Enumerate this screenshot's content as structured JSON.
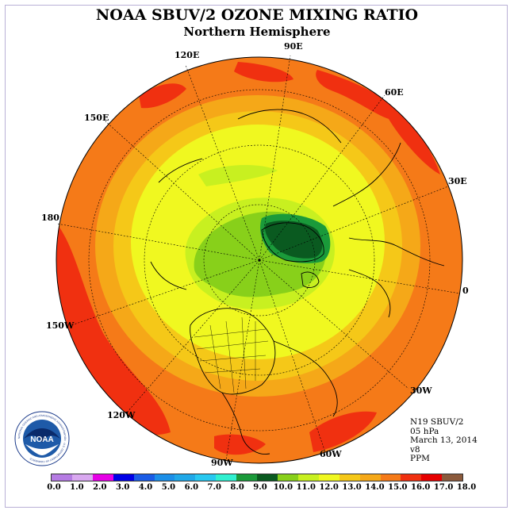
{
  "title": "NOAA SBUV/2 OZONE MIXING RATIO",
  "subtitle": "Northern Hemisphere",
  "longitude_labels": [
    "120E",
    "90E",
    "60E",
    "150E",
    "30E",
    "180",
    "0",
    "150W",
    "30W",
    "120W",
    "60W",
    "90W"
  ],
  "info": {
    "satellite": "N19 SBUV/2",
    "level": "05 hPa",
    "date": "March 13, 2014",
    "version": "v8",
    "units": "PPM"
  },
  "logo": {
    "text": "NOAA",
    "ring_text": "NATIONAL OCEANIC AND ATMOSPHERIC ADMINISTRATION · U.S. DEPARTMENT OF COMMERCE"
  },
  "colorbar": {
    "colors": [
      "#b57be3",
      "#d9a8f0",
      "#e600e6",
      "#0000e6",
      "#1a5ce6",
      "#1c8fe8",
      "#20a8e8",
      "#28c8f0",
      "#30f0d0",
      "#1a9a3a",
      "#0a5a20",
      "#88d01a",
      "#c8f020",
      "#f0f820",
      "#f5c818",
      "#f5a818",
      "#f57a18",
      "#f03010",
      "#e60000",
      "#8b5a3c"
    ],
    "tick_labels": [
      "0.0",
      "1.0",
      "2.0",
      "3.0",
      "4.0",
      "5.0",
      "6.0",
      "7.0",
      "8.0",
      "9.0",
      "10.0",
      "11.0",
      "12.0",
      "13.0",
      "14.0",
      "15.0",
      "16.0",
      "17.0",
      "18.0"
    ]
  }
}
